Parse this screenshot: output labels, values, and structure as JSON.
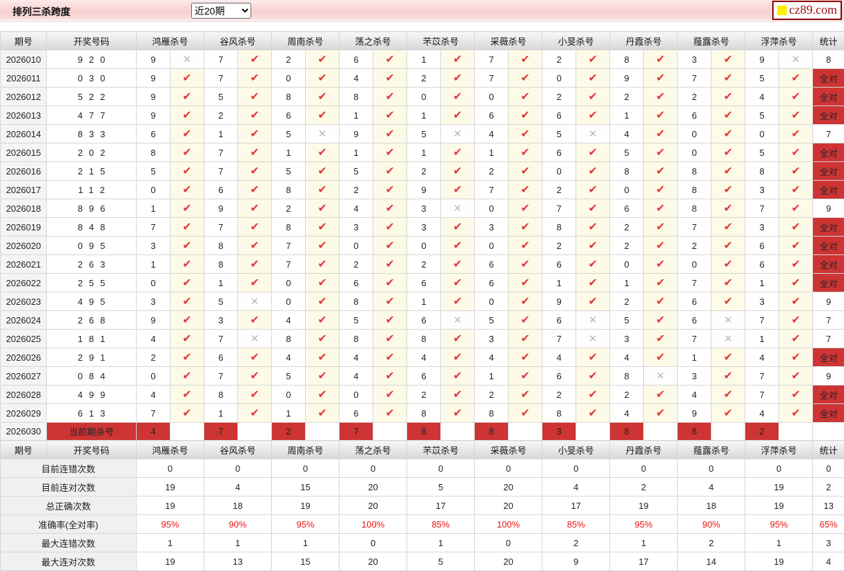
{
  "header": {
    "title": "排列三杀跨度",
    "range_select": {
      "value": "近20期",
      "options": [
        "近20期"
      ]
    },
    "logo": {
      "text": "cz89.com"
    }
  },
  "colors": {
    "accent_red": "#ce3434",
    "check_red": "#e03a3a",
    "cross_gray": "#b9b9b9",
    "stat_blue": "#1414d2",
    "percent_red": "#ee1111",
    "mark_bg_cream": "#fdfae7",
    "topbar_pink": "#f6cfcf",
    "logo_yellow": "#ffee00"
  },
  "icons": {
    "check": "✔",
    "cross": "✕",
    "dropdown": "chevron-down-icon"
  },
  "table": {
    "col_headers": {
      "period": "期号",
      "draw": "开奖号码",
      "experts": [
        "鸿雁杀号",
        "谷风杀号",
        "周南杀号",
        "荡之杀号",
        "芣苡杀号",
        "采薇杀号",
        "小旻杀号",
        "丹霞杀号",
        "薤露杀号",
        "浮萍杀号"
      ],
      "stat": "统计"
    },
    "all_correct_label": "全对",
    "rows": [
      {
        "period": "2026010",
        "draw": "920",
        "kills": [
          [
            9,
            false
          ],
          [
            7,
            true
          ],
          [
            2,
            true
          ],
          [
            6,
            true
          ],
          [
            1,
            true
          ],
          [
            7,
            true
          ],
          [
            2,
            true
          ],
          [
            8,
            true
          ],
          [
            3,
            true
          ],
          [
            9,
            false
          ]
        ],
        "stat": "8"
      },
      {
        "period": "2026011",
        "draw": "030",
        "kills": [
          [
            9,
            true
          ],
          [
            7,
            true
          ],
          [
            0,
            true
          ],
          [
            4,
            true
          ],
          [
            2,
            true
          ],
          [
            7,
            true
          ],
          [
            0,
            true
          ],
          [
            9,
            true
          ],
          [
            7,
            true
          ],
          [
            5,
            true
          ]
        ],
        "stat": "全对"
      },
      {
        "period": "2026012",
        "draw": "522",
        "kills": [
          [
            9,
            true
          ],
          [
            5,
            true
          ],
          [
            8,
            true
          ],
          [
            8,
            true
          ],
          [
            0,
            true
          ],
          [
            0,
            true
          ],
          [
            2,
            true
          ],
          [
            2,
            true
          ],
          [
            2,
            true
          ],
          [
            4,
            true
          ]
        ],
        "stat": "全对"
      },
      {
        "period": "2026013",
        "draw": "477",
        "kills": [
          [
            9,
            true
          ],
          [
            2,
            true
          ],
          [
            6,
            true
          ],
          [
            1,
            true
          ],
          [
            1,
            true
          ],
          [
            6,
            true
          ],
          [
            6,
            true
          ],
          [
            1,
            true
          ],
          [
            6,
            true
          ],
          [
            5,
            true
          ]
        ],
        "stat": "全对"
      },
      {
        "period": "2026014",
        "draw": "833",
        "kills": [
          [
            6,
            true
          ],
          [
            1,
            true
          ],
          [
            5,
            false
          ],
          [
            9,
            true
          ],
          [
            5,
            false
          ],
          [
            4,
            true
          ],
          [
            5,
            false
          ],
          [
            4,
            true
          ],
          [
            0,
            true
          ],
          [
            0,
            true
          ]
        ],
        "stat": "7"
      },
      {
        "period": "2026015",
        "draw": "202",
        "kills": [
          [
            8,
            true
          ],
          [
            7,
            true
          ],
          [
            1,
            true
          ],
          [
            1,
            true
          ],
          [
            1,
            true
          ],
          [
            1,
            true
          ],
          [
            6,
            true
          ],
          [
            5,
            true
          ],
          [
            0,
            true
          ],
          [
            5,
            true
          ]
        ],
        "stat": "全对"
      },
      {
        "period": "2026016",
        "draw": "215",
        "kills": [
          [
            5,
            true
          ],
          [
            7,
            true
          ],
          [
            5,
            true
          ],
          [
            5,
            true
          ],
          [
            2,
            true
          ],
          [
            2,
            true
          ],
          [
            0,
            true
          ],
          [
            8,
            true
          ],
          [
            8,
            true
          ],
          [
            8,
            true
          ]
        ],
        "stat": "全对"
      },
      {
        "period": "2026017",
        "draw": "112",
        "kills": [
          [
            0,
            true
          ],
          [
            6,
            true
          ],
          [
            8,
            true
          ],
          [
            2,
            true
          ],
          [
            9,
            true
          ],
          [
            7,
            true
          ],
          [
            2,
            true
          ],
          [
            0,
            true
          ],
          [
            8,
            true
          ],
          [
            3,
            true
          ]
        ],
        "stat": "全对"
      },
      {
        "period": "2026018",
        "draw": "896",
        "kills": [
          [
            1,
            true
          ],
          [
            9,
            true
          ],
          [
            2,
            true
          ],
          [
            4,
            true
          ],
          [
            3,
            false
          ],
          [
            0,
            true
          ],
          [
            7,
            true
          ],
          [
            6,
            true
          ],
          [
            8,
            true
          ],
          [
            7,
            true
          ]
        ],
        "stat": "9"
      },
      {
        "period": "2026019",
        "draw": "848",
        "kills": [
          [
            7,
            true
          ],
          [
            7,
            true
          ],
          [
            8,
            true
          ],
          [
            3,
            true
          ],
          [
            3,
            true
          ],
          [
            3,
            true
          ],
          [
            8,
            true
          ],
          [
            2,
            true
          ],
          [
            7,
            true
          ],
          [
            3,
            true
          ]
        ],
        "stat": "全对"
      },
      {
        "period": "2026020",
        "draw": "095",
        "kills": [
          [
            3,
            true
          ],
          [
            8,
            true
          ],
          [
            7,
            true
          ],
          [
            0,
            true
          ],
          [
            0,
            true
          ],
          [
            0,
            true
          ],
          [
            2,
            true
          ],
          [
            2,
            true
          ],
          [
            2,
            true
          ],
          [
            6,
            true
          ]
        ],
        "stat": "全对"
      },
      {
        "period": "2026021",
        "draw": "263",
        "kills": [
          [
            1,
            true
          ],
          [
            8,
            true
          ],
          [
            7,
            true
          ],
          [
            2,
            true
          ],
          [
            2,
            true
          ],
          [
            6,
            true
          ],
          [
            6,
            true
          ],
          [
            0,
            true
          ],
          [
            0,
            true
          ],
          [
            6,
            true
          ]
        ],
        "stat": "全对"
      },
      {
        "period": "2026022",
        "draw": "255",
        "kills": [
          [
            0,
            true
          ],
          [
            1,
            true
          ],
          [
            0,
            true
          ],
          [
            6,
            true
          ],
          [
            6,
            true
          ],
          [
            6,
            true
          ],
          [
            1,
            true
          ],
          [
            1,
            true
          ],
          [
            7,
            true
          ],
          [
            1,
            true
          ]
        ],
        "stat": "全对"
      },
      {
        "period": "2026023",
        "draw": "495",
        "kills": [
          [
            3,
            true
          ],
          [
            5,
            false
          ],
          [
            0,
            true
          ],
          [
            8,
            true
          ],
          [
            1,
            true
          ],
          [
            0,
            true
          ],
          [
            9,
            true
          ],
          [
            2,
            true
          ],
          [
            6,
            true
          ],
          [
            3,
            true
          ]
        ],
        "stat": "9"
      },
      {
        "period": "2026024",
        "draw": "268",
        "kills": [
          [
            9,
            true
          ],
          [
            3,
            true
          ],
          [
            4,
            true
          ],
          [
            5,
            true
          ],
          [
            6,
            false
          ],
          [
            5,
            true
          ],
          [
            6,
            false
          ],
          [
            5,
            true
          ],
          [
            6,
            false
          ],
          [
            7,
            true
          ]
        ],
        "stat": "7"
      },
      {
        "period": "2026025",
        "draw": "181",
        "kills": [
          [
            4,
            true
          ],
          [
            7,
            false
          ],
          [
            8,
            true
          ],
          [
            8,
            true
          ],
          [
            8,
            true
          ],
          [
            3,
            true
          ],
          [
            7,
            false
          ],
          [
            3,
            true
          ],
          [
            7,
            false
          ],
          [
            1,
            true
          ]
        ],
        "stat": "7"
      },
      {
        "period": "2026026",
        "draw": "291",
        "kills": [
          [
            2,
            true
          ],
          [
            6,
            true
          ],
          [
            4,
            true
          ],
          [
            4,
            true
          ],
          [
            4,
            true
          ],
          [
            4,
            true
          ],
          [
            4,
            true
          ],
          [
            4,
            true
          ],
          [
            1,
            true
          ],
          [
            4,
            true
          ]
        ],
        "stat": "全对"
      },
      {
        "period": "2026027",
        "draw": "084",
        "kills": [
          [
            0,
            true
          ],
          [
            7,
            true
          ],
          [
            5,
            true
          ],
          [
            4,
            true
          ],
          [
            6,
            true
          ],
          [
            1,
            true
          ],
          [
            6,
            true
          ],
          [
            8,
            false
          ],
          [
            3,
            true
          ],
          [
            7,
            true
          ]
        ],
        "stat": "9"
      },
      {
        "period": "2026028",
        "draw": "499",
        "kills": [
          [
            4,
            true
          ],
          [
            8,
            true
          ],
          [
            0,
            true
          ],
          [
            0,
            true
          ],
          [
            2,
            true
          ],
          [
            2,
            true
          ],
          [
            2,
            true
          ],
          [
            2,
            true
          ],
          [
            4,
            true
          ],
          [
            7,
            true
          ]
        ],
        "stat": "全对"
      },
      {
        "period": "2026029",
        "draw": "613",
        "kills": [
          [
            7,
            true
          ],
          [
            1,
            true
          ],
          [
            1,
            true
          ],
          [
            6,
            true
          ],
          [
            8,
            true
          ],
          [
            8,
            true
          ],
          [
            8,
            true
          ],
          [
            4,
            true
          ],
          [
            9,
            true
          ],
          [
            4,
            true
          ]
        ],
        "stat": "全对"
      }
    ],
    "current_row": {
      "period": "2026030",
      "label": "当前期杀号",
      "kills": [
        4,
        7,
        2,
        7,
        8,
        8,
        3,
        8,
        8,
        2
      ]
    },
    "stat_rows": [
      {
        "label": "目前连错次数",
        "values": [
          "0",
          "0",
          "0",
          "0",
          "0",
          "0",
          "0",
          "0",
          "0",
          "0"
        ],
        "total": "0",
        "style": "blue"
      },
      {
        "label": "目前连对次数",
        "values": [
          "19",
          "4",
          "15",
          "20",
          "5",
          "20",
          "4",
          "2",
          "4",
          "19"
        ],
        "total": "2",
        "style": "blue"
      },
      {
        "label": "总正确次数",
        "values": [
          "19",
          "18",
          "19",
          "20",
          "17",
          "20",
          "17",
          "19",
          "18",
          "19"
        ],
        "total": "13",
        "style": "blue"
      },
      {
        "label": "准确率(全对率)",
        "values": [
          "95%",
          "90%",
          "95%",
          "100%",
          "85%",
          "100%",
          "85%",
          "95%",
          "90%",
          "95%"
        ],
        "total": "65%",
        "style": "red"
      },
      {
        "label": "最大连错次数",
        "values": [
          "1",
          "1",
          "1",
          "0",
          "1",
          "0",
          "2",
          "1",
          "2",
          "1"
        ],
        "total": "3",
        "style": "blue"
      },
      {
        "label": "最大连对次数",
        "values": [
          "19",
          "13",
          "15",
          "20",
          "5",
          "20",
          "9",
          "17",
          "14",
          "19"
        ],
        "total": "4",
        "style": "blue"
      }
    ]
  }
}
